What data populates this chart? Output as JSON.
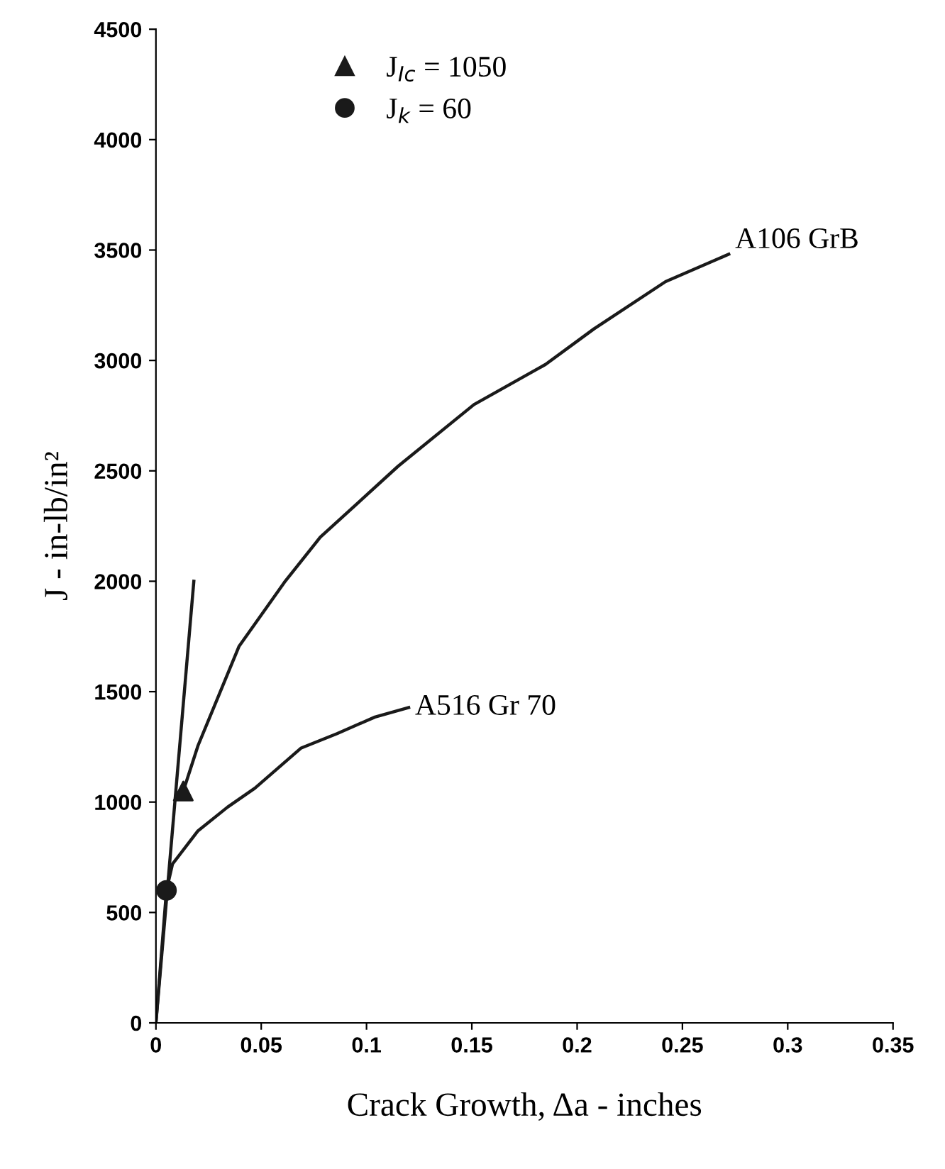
{
  "chart_data": {
    "type": "line",
    "xlabel": "Crack Growth, Δa - inches",
    "ylabel": "J - in-lb/in²",
    "xlim": [
      0,
      0.35
    ],
    "xticks": [
      0,
      0.05,
      0.1,
      0.15,
      0.2,
      0.25,
      0.3,
      0.35
    ],
    "ylim": [
      0,
      4500
    ],
    "yticks": [
      0,
      500,
      1000,
      1500,
      2000,
      2500,
      3000,
      3500,
      4000,
      4500
    ],
    "grid": false,
    "legend": "top left",
    "marker": "none",
    "line_style": "solid",
    "series": [
      {
        "name": "A106 GrB",
        "color": "#1a1a1a",
        "x": [
          0.013,
          0.02,
          0.0395,
          0.061,
          0.078,
          0.115,
          0.151,
          0.185,
          0.208,
          0.242,
          0.272
        ],
        "values": [
          1050,
          1256,
          1706,
          1995,
          2199,
          2521,
          2800,
          2982,
          3143,
          3357,
          3481
        ]
      },
      {
        "name": "A516 Gr 70",
        "color": "#1a1a1a",
        "x": [
          0,
          0.005,
          0.0079,
          0.02,
          0.034,
          0.047,
          0.069,
          0.086,
          0.104,
          0.12
        ],
        "values": [
          0,
          600,
          720,
          870,
          977,
          1063,
          1245,
          1310,
          1385,
          1428
        ]
      },
      {
        "color": "#1a1a1a",
        "x": [
          0,
          0.018
        ],
        "values": [
          0,
          2000
        ]
      },
      {
        "name": "J$_{Ic}$ = 1050",
        "type": "scatter",
        "marker": "triangle",
        "color": "#1a1a1a",
        "x": [
          0.013
        ],
        "values": [
          1050
        ]
      },
      {
        "name": "J$_{k}$ = 60",
        "type": "scatter",
        "marker": "circle",
        "color": "#1a1a1a",
        "x": [
          0.005
        ],
        "values": [
          600
        ]
      }
    ]
  }
}
